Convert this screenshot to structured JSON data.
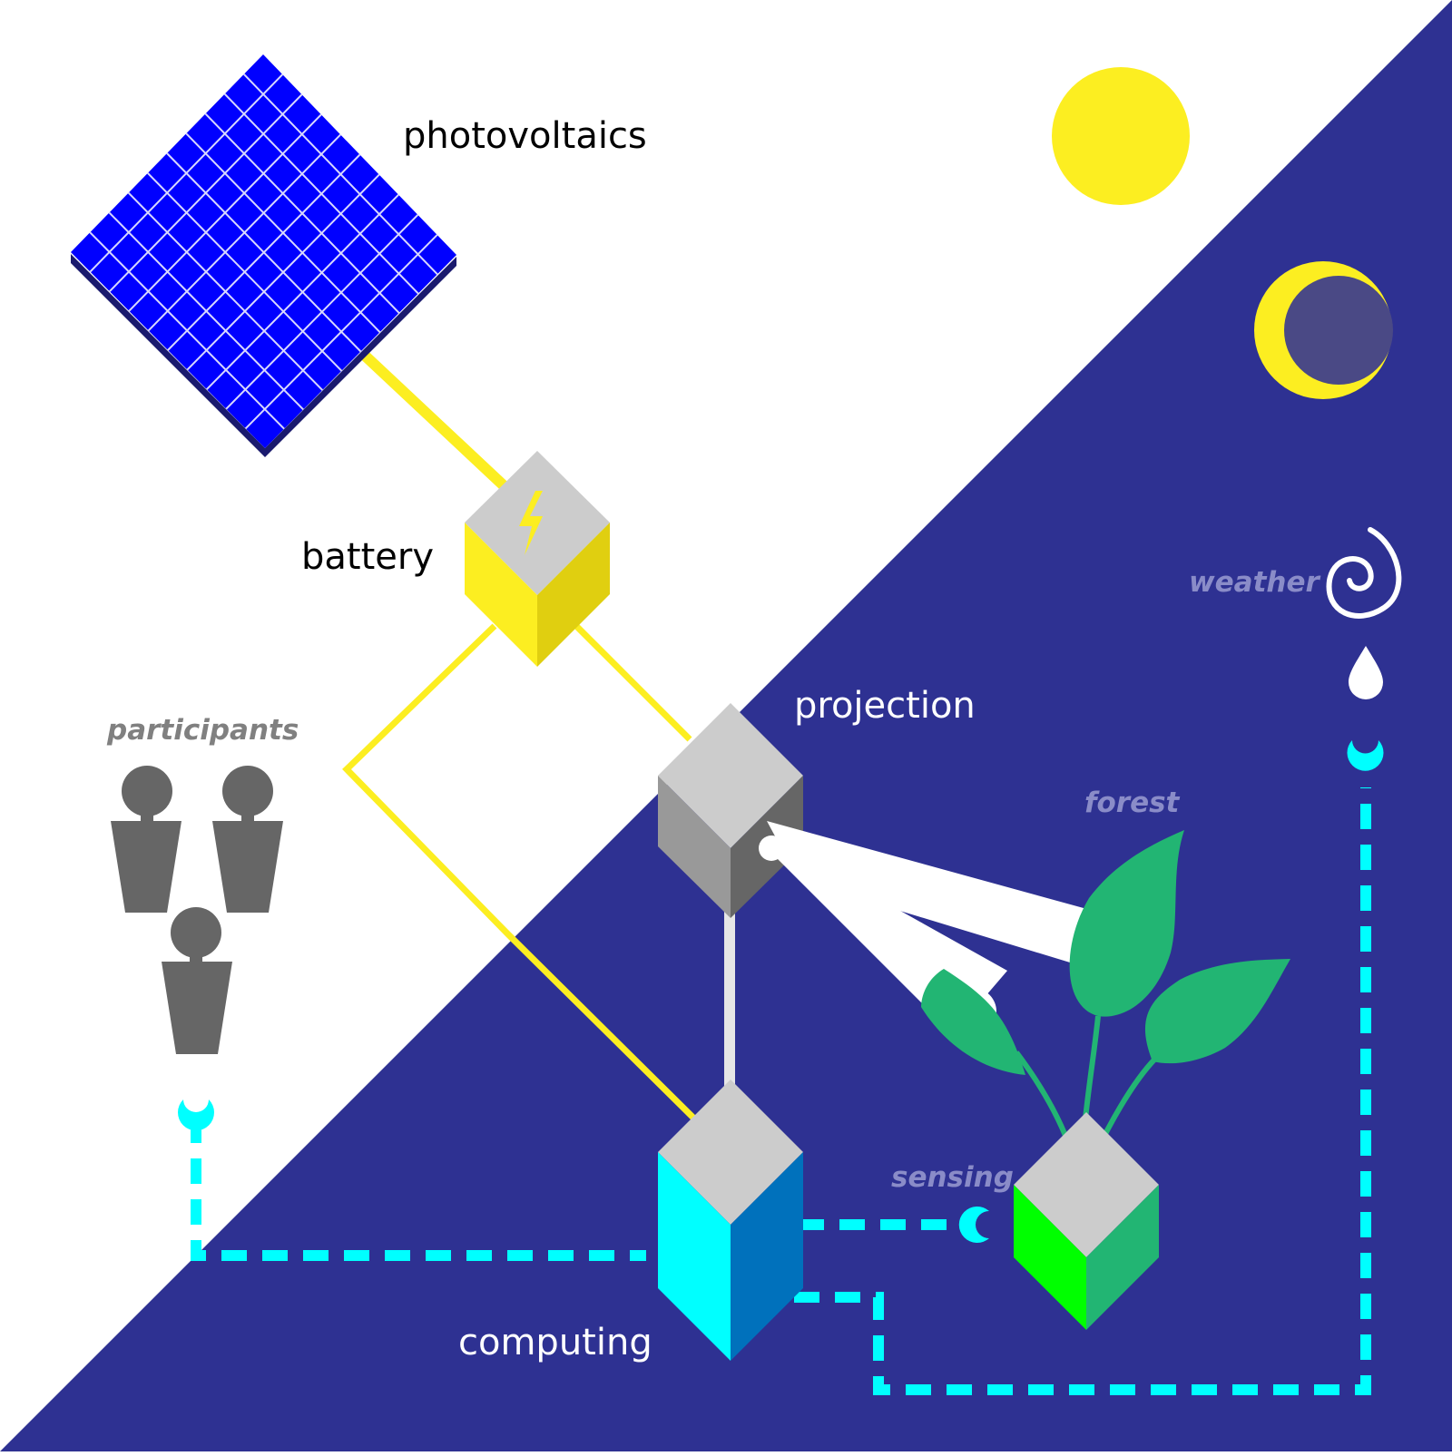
{
  "labels": {
    "photovoltaics": "photovoltaics",
    "battery": "battery",
    "projection": "projection",
    "computing": "computing",
    "participants": "participants",
    "forest": "forest",
    "sensing": "sensing",
    "weather": "weather"
  },
  "icons": {
    "sun": "sun-icon",
    "moon": "crescent-moon-icon",
    "weather": "spiral-icon",
    "rain": "water-drop-icon",
    "bolt": "lightning-bolt-icon",
    "person": "person-icon",
    "plant": "plant-icon",
    "sensor": "sensor-icon"
  },
  "colors": {
    "night": "#2e3192",
    "day": "#ffffff",
    "panel": "#0000ff",
    "energy": "#fcee21",
    "data": "#00ffff",
    "forest": "#22b573",
    "projector_gray": "#999999",
    "label_dark": "#000000",
    "label_light": "#ffffff",
    "label_muted_day": "#808080",
    "label_muted_night": "#8a8cc8"
  }
}
